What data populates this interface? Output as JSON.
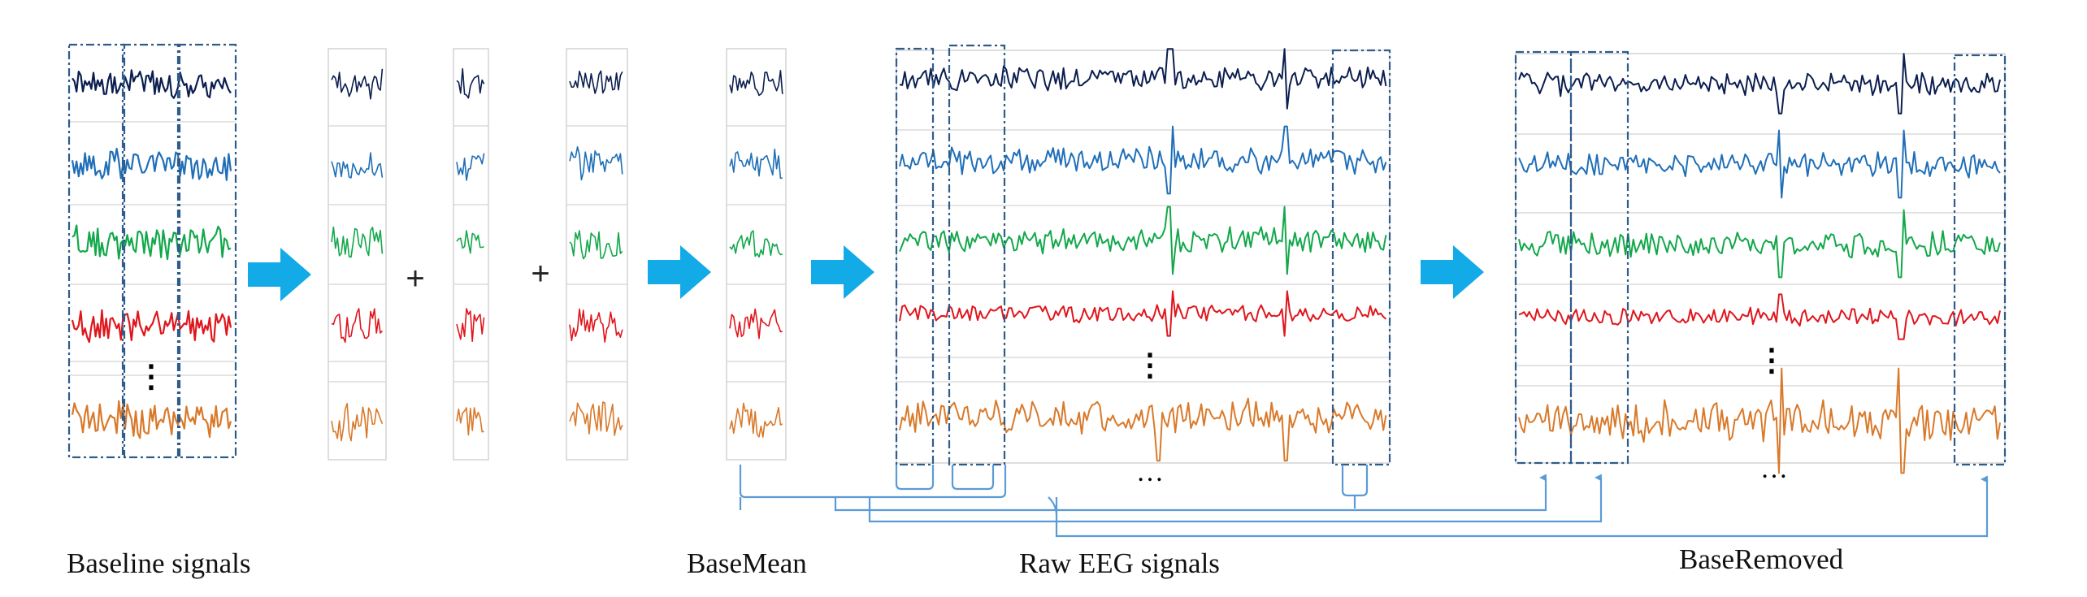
{
  "captions": {
    "baseline": "Baseline signals",
    "basemean": "BaseMean",
    "raw": "Raw EEG signals",
    "removed": "BaseRemoved"
  },
  "symbols": {
    "plus": "+",
    "vdots": "⋮",
    "hdots": "…"
  },
  "channel_colors": [
    "#0b1e4f",
    "#1f6fb8",
    "#12a84a",
    "#e0161d",
    "#d9792a"
  ],
  "flow_color": "#5b9bd5",
  "arrow_color": "#13aae8",
  "dash_color": "#2f5c8a",
  "divider_color": "#d4d4d4"
}
